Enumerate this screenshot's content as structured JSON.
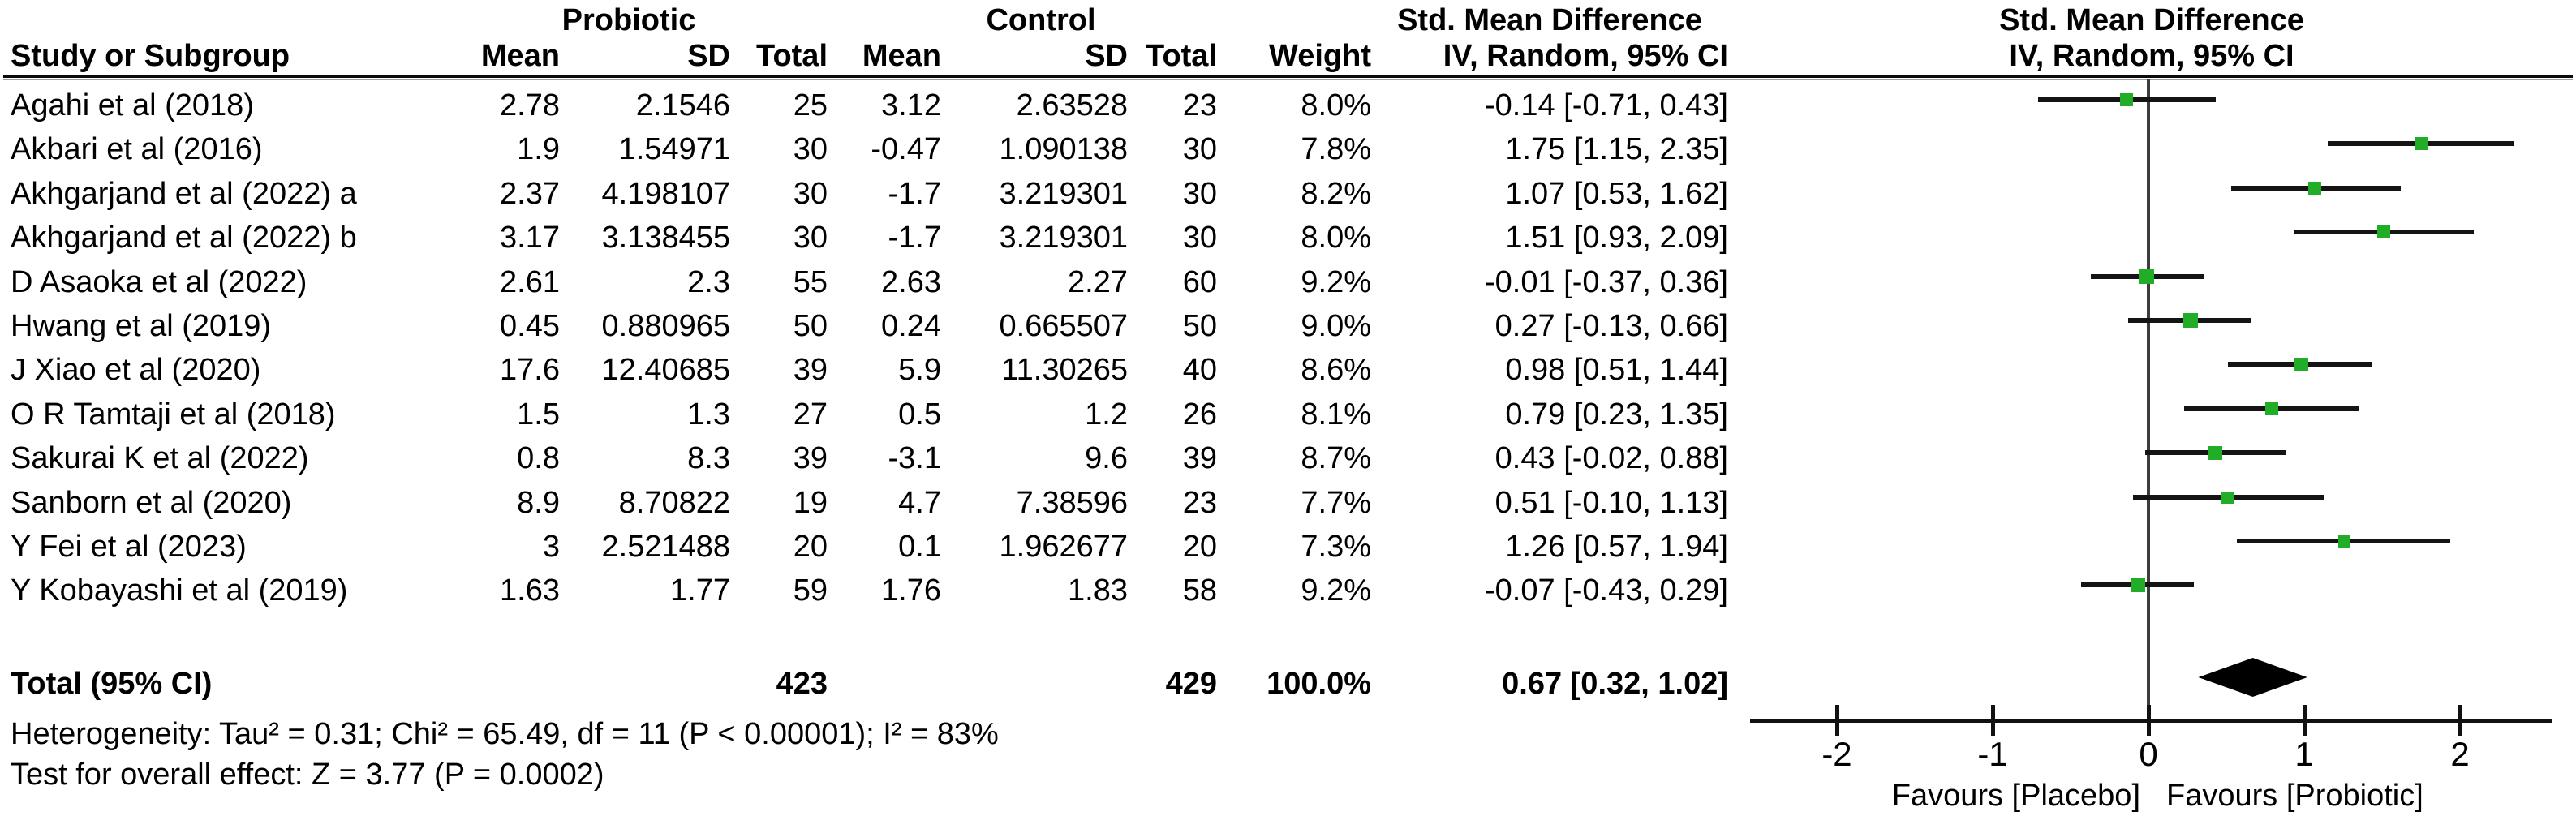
{
  "table": {
    "group_headers": {
      "probiotic": "Probiotic",
      "control": "Control",
      "smd_text": "Std. Mean Difference",
      "smd_plot": "Std. Mean Difference"
    },
    "columns": [
      "Study or Subgroup",
      "Mean",
      "SD",
      "Total",
      "Mean",
      "SD",
      "Total",
      "Weight",
      "IV, Random, 95% CI"
    ],
    "plot_col_header": "IV, Random, 95% CI"
  },
  "chart_data": {
    "type": "forest",
    "effect_measure": "Std. Mean Difference (IV, Random, 95% CI)",
    "studies": [
      {
        "name": "Agahi et al (2018)",
        "mean_p": "2.78",
        "sd_p": "2.1546",
        "n_p": "25",
        "mean_c": "3.12",
        "sd_c": "2.63528",
        "n_c": "23",
        "weight": "8.0%",
        "ci_text": "-0.14 [-0.71, 0.43]",
        "est": -0.14,
        "lo": -0.71,
        "hi": 0.43
      },
      {
        "name": "Akbari et al (2016)",
        "mean_p": "1.9",
        "sd_p": "1.54971",
        "n_p": "30",
        "mean_c": "-0.47",
        "sd_c": "1.090138",
        "n_c": "30",
        "weight": "7.8%",
        "ci_text": "1.75 [1.15, 2.35]",
        "est": 1.75,
        "lo": 1.15,
        "hi": 2.35
      },
      {
        "name": "Akhgarjand et al (2022) a",
        "mean_p": "2.37",
        "sd_p": "4.198107",
        "n_p": "30",
        "mean_c": "-1.7",
        "sd_c": "3.219301",
        "n_c": "30",
        "weight": "8.2%",
        "ci_text": "1.07 [0.53, 1.62]",
        "est": 1.07,
        "lo": 0.53,
        "hi": 1.62
      },
      {
        "name": "Akhgarjand et al (2022) b",
        "mean_p": "3.17",
        "sd_p": "3.138455",
        "n_p": "30",
        "mean_c": "-1.7",
        "sd_c": "3.219301",
        "n_c": "30",
        "weight": "8.0%",
        "ci_text": "1.51 [0.93, 2.09]",
        "est": 1.51,
        "lo": 0.93,
        "hi": 2.09
      },
      {
        "name": "D Asaoka et al (2022)",
        "mean_p": "2.61",
        "sd_p": "2.3",
        "n_p": "55",
        "mean_c": "2.63",
        "sd_c": "2.27",
        "n_c": "60",
        "weight": "9.2%",
        "ci_text": "-0.01 [-0.37, 0.36]",
        "est": -0.01,
        "lo": -0.37,
        "hi": 0.36
      },
      {
        "name": "Hwang et al (2019)",
        "mean_p": "0.45",
        "sd_p": "0.880965",
        "n_p": "50",
        "mean_c": "0.24",
        "sd_c": "0.665507",
        "n_c": "50",
        "weight": "9.0%",
        "ci_text": "0.27 [-0.13, 0.66]",
        "est": 0.27,
        "lo": -0.13,
        "hi": 0.66
      },
      {
        "name": "J Xiao et al (2020)",
        "mean_p": "17.6",
        "sd_p": "12.40685",
        "n_p": "39",
        "mean_c": "5.9",
        "sd_c": "11.30265",
        "n_c": "40",
        "weight": "8.6%",
        "ci_text": "0.98 [0.51, 1.44]",
        "est": 0.98,
        "lo": 0.51,
        "hi": 1.44
      },
      {
        "name": "O R Tamtaji et al (2018)",
        "mean_p": "1.5",
        "sd_p": "1.3",
        "n_p": "27",
        "mean_c": "0.5",
        "sd_c": "1.2",
        "n_c": "26",
        "weight": "8.1%",
        "ci_text": "0.79 [0.23, 1.35]",
        "est": 0.79,
        "lo": 0.23,
        "hi": 1.35
      },
      {
        "name": "Sakurai K et al (2022)",
        "mean_p": "0.8",
        "sd_p": "8.3",
        "n_p": "39",
        "mean_c": "-3.1",
        "sd_c": "9.6",
        "n_c": "39",
        "weight": "8.7%",
        "ci_text": "0.43 [-0.02, 0.88]",
        "est": 0.43,
        "lo": -0.02,
        "hi": 0.88
      },
      {
        "name": "Sanborn et al (2020)",
        "mean_p": "8.9",
        "sd_p": "8.70822",
        "n_p": "19",
        "mean_c": "4.7",
        "sd_c": "7.38596",
        "n_c": "23",
        "weight": "7.7%",
        "ci_text": "0.51 [-0.10, 1.13]",
        "est": 0.51,
        "lo": -0.1,
        "hi": 1.13
      },
      {
        "name": "Y Fei et al (2023)",
        "mean_p": "3",
        "sd_p": "2.521488",
        "n_p": "20",
        "mean_c": "0.1",
        "sd_c": "1.962677",
        "n_c": "20",
        "weight": "7.3%",
        "ci_text": "1.26 [0.57, 1.94]",
        "est": 1.26,
        "lo": 0.57,
        "hi": 1.94
      },
      {
        "name": "Y Kobayashi et al (2019)",
        "mean_p": "1.63",
        "sd_p": "1.77",
        "n_p": "59",
        "mean_c": "1.76",
        "sd_c": "1.83",
        "n_c": "58",
        "weight": "9.2%",
        "ci_text": "-0.07 [-0.43, 0.29]",
        "est": -0.07,
        "lo": -0.43,
        "hi": 0.29
      }
    ],
    "total": {
      "label": "Total (95% CI)",
      "n_p": "423",
      "n_c": "429",
      "weight": "100.0%",
      "ci_text": "0.67 [0.32, 1.02]",
      "est": 0.67,
      "lo": 0.32,
      "hi": 1.02
    },
    "axis": {
      "ticks": [
        -2,
        -1,
        0,
        1,
        2
      ],
      "tick_labels": [
        "-2",
        "-1",
        "0",
        "1",
        "2"
      ],
      "xmin": -2.56,
      "xmax": 2.6
    },
    "favours_left": "Favours [Placebo]",
    "favours_right": "Favours [Probiotic]",
    "marker_color": "#22ad29",
    "line_color": "#141414",
    "diamond_color": "#000000"
  },
  "footer": {
    "heterogeneity": "Heterogeneity: Tau² = 0.31; Chi² = 65.49, df = 11 (P < 0.00001); I² = 83%",
    "overall_effect": "Test for overall effect: Z = 3.77 (P = 0.0002)"
  }
}
